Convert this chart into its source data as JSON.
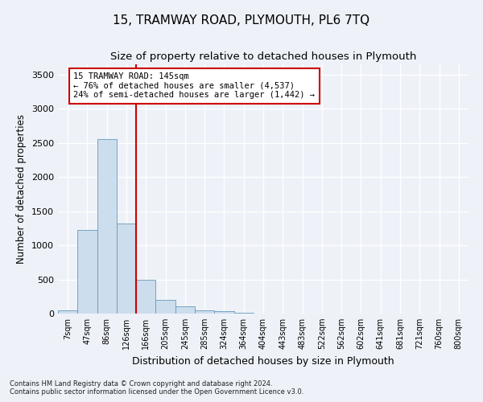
{
  "title": "15, TRAMWAY ROAD, PLYMOUTH, PL6 7TQ",
  "subtitle": "Size of property relative to detached houses in Plymouth",
  "xlabel": "Distribution of detached houses by size in Plymouth",
  "ylabel": "Number of detached properties",
  "categories": [
    "7sqm",
    "47sqm",
    "86sqm",
    "126sqm",
    "166sqm",
    "205sqm",
    "245sqm",
    "285sqm",
    "324sqm",
    "364sqm",
    "404sqm",
    "443sqm",
    "483sqm",
    "522sqm",
    "562sqm",
    "602sqm",
    "641sqm",
    "681sqm",
    "721sqm",
    "760sqm",
    "800sqm"
  ],
  "values": [
    50,
    1220,
    2560,
    1320,
    490,
    200,
    105,
    50,
    30,
    10,
    5,
    5,
    5,
    3,
    2,
    2,
    2,
    2,
    2,
    2,
    2
  ],
  "bar_color": "#ccdded",
  "bar_edge_color": "#6699bb",
  "vline_x": 3.5,
  "vline_color": "#cc0000",
  "annotation_text": "15 TRAMWAY ROAD: 145sqm\n← 76% of detached houses are smaller (4,537)\n24% of semi-detached houses are larger (1,442) →",
  "annotation_box_color": "#ffffff",
  "annotation_box_edge_color": "#cc0000",
  "ylim": [
    0,
    3650
  ],
  "yticks": [
    0,
    500,
    1000,
    1500,
    2000,
    2500,
    3000,
    3500
  ],
  "footnote1": "Contains HM Land Registry data © Crown copyright and database right 2024.",
  "footnote2": "Contains public sector information licensed under the Open Government Licence v3.0.",
  "bg_color": "#eef2f8",
  "grid_color": "#ffffff",
  "title_fontsize": 11,
  "subtitle_fontsize": 9.5,
  "ylabel_fontsize": 8.5,
  "xlabel_fontsize": 9,
  "tick_fontsize": 7,
  "footnote_fontsize": 6
}
